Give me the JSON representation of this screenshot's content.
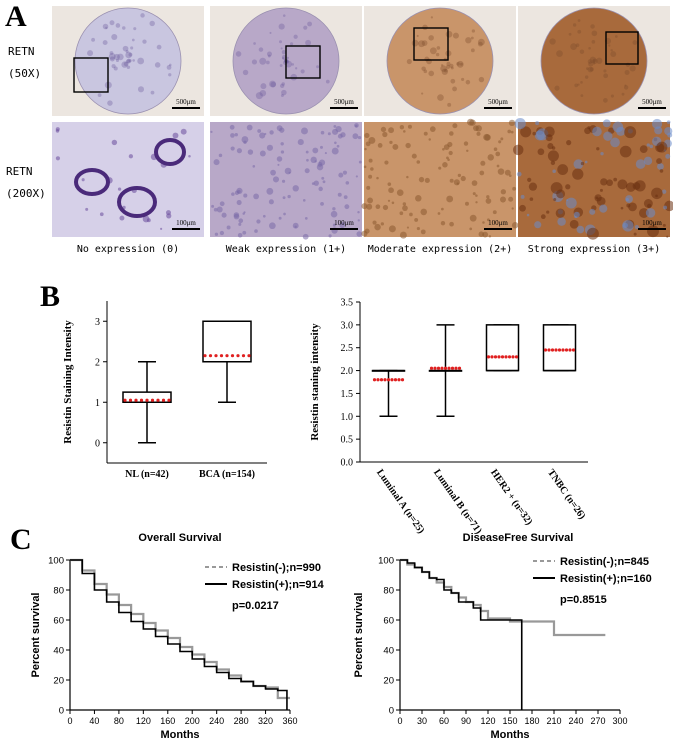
{
  "figure": {
    "panel_a": {
      "letter": "A",
      "row1_label": [
        "RETN",
        "(50X)"
      ],
      "row2_label": [
        "RETN",
        "(200X)"
      ],
      "scale_top": "500μm",
      "scale_bottom": "100μm",
      "captions": [
        "No expression (0)",
        "Weak expression (1+)",
        "Moderate expression (2+)",
        "Strong expression (3+)"
      ],
      "tissue_colors": [
        "#c9c6e0",
        "#b8a8c8",
        "#c9956a",
        "#a86a3c"
      ],
      "bg_color": "#ece6e0"
    },
    "panel_b": {
      "letter": "B"
    },
    "panel_c": {
      "letter": "C"
    }
  },
  "chart_data": [
    {
      "type": "box",
      "ylabel": "Resistin Staining Intensity",
      "ylim": [
        -0.5,
        3.5
      ],
      "yticks": [
        0,
        1,
        2,
        3
      ],
      "categories": [
        "NL (n=42)",
        "BCA (n=154)"
      ],
      "boxes": [
        {
          "min": 0,
          "q1": 1,
          "median": 1,
          "q3": 1.25,
          "max": 2,
          "mean": 1.05
        },
        {
          "min": 1,
          "q1": 2,
          "median": 2,
          "q3": 3,
          "max": 3,
          "mean": 2.15
        }
      ],
      "mean_color": "#e02020"
    },
    {
      "type": "box",
      "ylabel": "Resistin staning intensity",
      "ylim": [
        0,
        3.5
      ],
      "yticks": [
        0.0,
        0.5,
        1.0,
        1.5,
        2.0,
        2.5,
        3.0,
        3.5
      ],
      "categories": [
        "Luminal A (n=25)",
        "Luminal B (n=71)",
        "HER2 + (n=32)",
        "TNBC (n=26)"
      ],
      "boxes": [
        {
          "min": 1,
          "q1": 2,
          "median": 2,
          "q3": 2,
          "max": 2,
          "mean": 1.8
        },
        {
          "min": 1,
          "q1": 2,
          "median": 2,
          "q3": 2,
          "max": 3,
          "mean": 2.05
        },
        {
          "min": 2,
          "q1": 2,
          "median": 2,
          "q3": 3,
          "max": 3,
          "mean": 2.3
        },
        {
          "min": 2,
          "q1": 2,
          "median": 2,
          "q3": 3,
          "max": 3,
          "mean": 2.45
        }
      ],
      "mean_color": "#e02020"
    },
    {
      "type": "line",
      "title": "Overall Survival",
      "xlabel": "Months",
      "ylabel": "Percent survival",
      "xlim": [
        0,
        360
      ],
      "ylim": [
        0,
        100
      ],
      "xticks": [
        0,
        40,
        80,
        120,
        160,
        200,
        240,
        280,
        320,
        360
      ],
      "yticks": [
        0,
        20,
        40,
        60,
        80,
        100
      ],
      "series": [
        {
          "name": "Resistin(-);n=990",
          "color": "#999999",
          "x": [
            0,
            20,
            40,
            60,
            80,
            100,
            120,
            140,
            160,
            180,
            200,
            220,
            240,
            260,
            280,
            300,
            320,
            340,
            360
          ],
          "y": [
            100,
            93,
            84,
            77,
            70,
            64,
            58,
            53,
            48,
            42,
            37,
            32,
            27,
            23,
            19,
            16,
            15,
            8,
            8
          ]
        },
        {
          "name": "Resistin(+);n=914",
          "color": "#000000",
          "x": [
            0,
            20,
            40,
            60,
            80,
            100,
            120,
            140,
            160,
            180,
            200,
            220,
            240,
            260,
            280,
            300,
            320,
            340,
            350,
            355
          ],
          "y": [
            100,
            91,
            80,
            72,
            65,
            59,
            54,
            49,
            44,
            39,
            34,
            29,
            25,
            21,
            19,
            16,
            14,
            13,
            13,
            0
          ]
        }
      ],
      "annotation": "p=0.0217"
    },
    {
      "type": "line",
      "title": "DiseaseFree Survival",
      "xlabel": "Months",
      "ylabel": "Percent survival",
      "xlim": [
        0,
        300
      ],
      "ylim": [
        0,
        100
      ],
      "xticks": [
        0,
        30,
        60,
        90,
        120,
        150,
        180,
        210,
        240,
        270,
        300
      ],
      "yticks": [
        0,
        20,
        40,
        60,
        80,
        100
      ],
      "series": [
        {
          "name": "Resistin(-);n=845",
          "color": "#999999",
          "x": [
            0,
            10,
            20,
            30,
            40,
            50,
            60,
            70,
            80,
            90,
            100,
            110,
            120,
            150,
            180,
            210,
            240,
            270,
            280
          ],
          "y": [
            100,
            97,
            95,
            92,
            88,
            85,
            82,
            78,
            75,
            72,
            70,
            66,
            61,
            59,
            59,
            50,
            50,
            50,
            50
          ]
        },
        {
          "name": "Resistin(+);n=160",
          "color": "#000000",
          "x": [
            0,
            10,
            20,
            30,
            40,
            50,
            60,
            70,
            80,
            90,
            100,
            110,
            130,
            150,
            165,
            166
          ],
          "y": [
            100,
            98,
            95,
            92,
            88,
            87,
            80,
            78,
            72,
            72,
            68,
            60,
            60,
            60,
            60,
            0
          ]
        }
      ],
      "annotation": "p=0.8515"
    }
  ]
}
